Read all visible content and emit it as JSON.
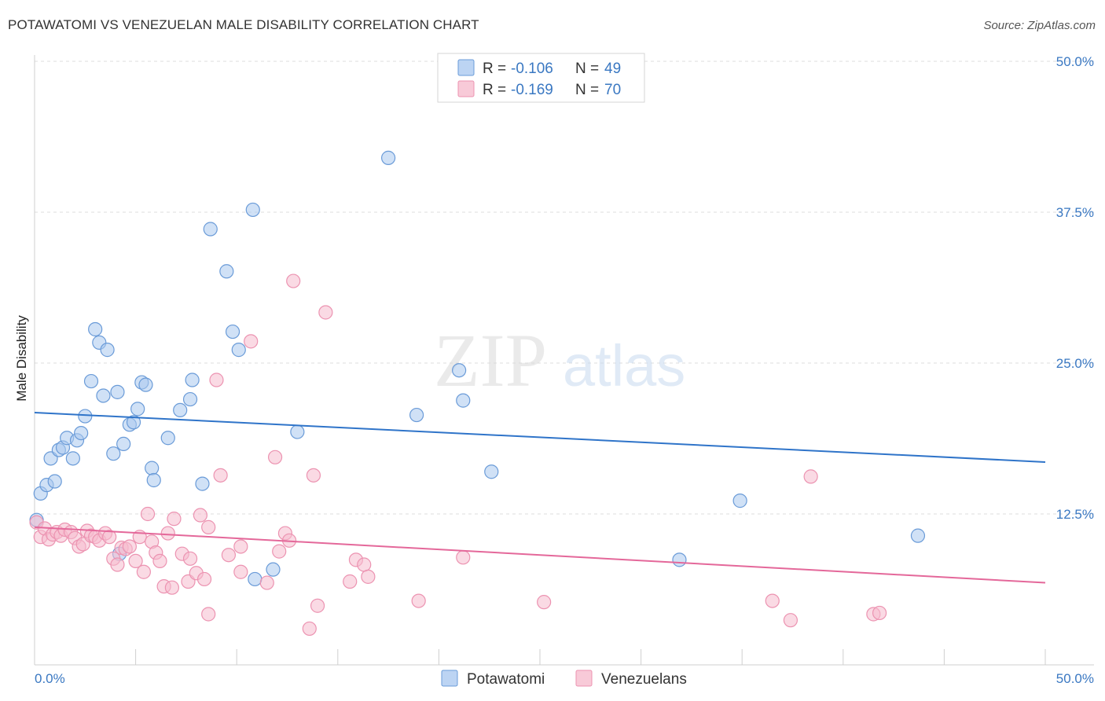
{
  "title": "POTAWATOMI VS VENEZUELAN MALE DISABILITY CORRELATION CHART",
  "source": "Source: ZipAtlas.com",
  "watermark": {
    "zip": "ZIP",
    "atlas": "atlas"
  },
  "colors": {
    "potawatomi_fill": "#a9c8ee",
    "potawatomi_stroke": "#6a9bd8",
    "potawatomi_line": "#2f74c9",
    "venezuelan_fill": "#f6bccd",
    "venezuelan_stroke": "#ec93b1",
    "venezuelan_line": "#e4689a",
    "tick_label": "#3a78c2"
  },
  "legend": {
    "rows": [
      {
        "r_label": "R =",
        "r_value": "-0.106",
        "n_label": "N =",
        "n_value": "49"
      },
      {
        "r_label": "R =",
        "r_value": "-0.169",
        "n_label": "N =",
        "n_value": "70"
      }
    ]
  },
  "chart_data": {
    "type": "scatter",
    "title": "POTAWATOMI VS VENEZUELAN MALE DISABILITY CORRELATION CHART",
    "xlabel": "",
    "ylabel": "Male Disability",
    "xlim": [
      0,
      50
    ],
    "ylim": [
      0,
      50
    ],
    "x_tick_labels": [
      "0.0%",
      "50.0%"
    ],
    "y_tick_labels": [
      "12.5%",
      "25.0%",
      "37.5%",
      "50.0%"
    ],
    "y_ticks": [
      12.5,
      25.0,
      37.5,
      50.0
    ],
    "grid": true,
    "legend_position": "top-center",
    "series": [
      {
        "name": "Potawatomi",
        "r": -0.106,
        "n": 49,
        "trend": {
          "x": [
            0,
            50
          ],
          "y": [
            20.9,
            16.8
          ]
        },
        "points": [
          [
            0.3,
            14.2
          ],
          [
            0.6,
            14.9
          ],
          [
            0.8,
            17.1
          ],
          [
            1.0,
            15.2
          ],
          [
            1.2,
            17.8
          ],
          [
            1.4,
            18.0
          ],
          [
            1.6,
            18.8
          ],
          [
            1.9,
            17.1
          ],
          [
            2.1,
            18.6
          ],
          [
            2.3,
            19.2
          ],
          [
            2.5,
            20.6
          ],
          [
            2.8,
            23.5
          ],
          [
            3.0,
            27.8
          ],
          [
            3.2,
            26.7
          ],
          [
            3.4,
            22.3
          ],
          [
            3.6,
            26.1
          ],
          [
            3.9,
            17.5
          ],
          [
            4.1,
            22.6
          ],
          [
            4.4,
            18.3
          ],
          [
            4.7,
            19.9
          ],
          [
            4.9,
            20.1
          ],
          [
            5.1,
            21.2
          ],
          [
            5.3,
            23.4
          ],
          [
            5.5,
            23.2
          ],
          [
            5.8,
            16.3
          ],
          [
            5.9,
            15.3
          ],
          [
            6.6,
            18.8
          ],
          [
            7.2,
            21.1
          ],
          [
            7.7,
            22.0
          ],
          [
            7.8,
            23.6
          ],
          [
            8.3,
            15.0
          ],
          [
            8.7,
            36.1
          ],
          [
            9.5,
            32.6
          ],
          [
            9.8,
            27.6
          ],
          [
            10.1,
            26.1
          ],
          [
            10.8,
            37.7
          ],
          [
            10.9,
            7.1
          ],
          [
            11.8,
            7.9
          ],
          [
            13.0,
            19.3
          ],
          [
            17.5,
            42.0
          ],
          [
            18.9,
            20.7
          ],
          [
            21.0,
            24.4
          ],
          [
            21.2,
            21.9
          ],
          [
            22.6,
            16.0
          ],
          [
            4.2,
            9.2
          ],
          [
            31.9,
            8.7
          ],
          [
            34.9,
            13.6
          ],
          [
            43.7,
            10.7
          ],
          [
            0.1,
            12.0
          ]
        ]
      },
      {
        "name": "Venezuelans",
        "r": -0.169,
        "n": 70,
        "trend": {
          "x": [
            0,
            50
          ],
          "y": [
            11.4,
            6.8
          ]
        },
        "points": [
          [
            0.1,
            11.8
          ],
          [
            0.3,
            10.6
          ],
          [
            0.5,
            11.3
          ],
          [
            0.7,
            10.4
          ],
          [
            0.9,
            10.8
          ],
          [
            1.1,
            11.0
          ],
          [
            1.3,
            10.7
          ],
          [
            1.5,
            11.2
          ],
          [
            1.8,
            11.0
          ],
          [
            2.0,
            10.5
          ],
          [
            2.2,
            9.8
          ],
          [
            2.4,
            10.0
          ],
          [
            2.6,
            11.1
          ],
          [
            2.8,
            10.7
          ],
          [
            3.0,
            10.6
          ],
          [
            3.2,
            10.3
          ],
          [
            3.5,
            10.9
          ],
          [
            3.7,
            10.6
          ],
          [
            3.9,
            8.8
          ],
          [
            4.1,
            8.3
          ],
          [
            4.3,
            9.7
          ],
          [
            4.5,
            9.6
          ],
          [
            4.7,
            9.8
          ],
          [
            5.0,
            8.6
          ],
          [
            5.2,
            10.6
          ],
          [
            5.4,
            7.7
          ],
          [
            5.6,
            12.5
          ],
          [
            5.8,
            10.2
          ],
          [
            6.0,
            9.3
          ],
          [
            6.2,
            8.6
          ],
          [
            6.4,
            6.5
          ],
          [
            6.6,
            10.9
          ],
          [
            6.8,
            6.4
          ],
          [
            6.9,
            12.1
          ],
          [
            7.3,
            9.2
          ],
          [
            7.6,
            6.9
          ],
          [
            7.7,
            8.8
          ],
          [
            8.0,
            7.6
          ],
          [
            8.2,
            12.4
          ],
          [
            8.4,
            7.1
          ],
          [
            8.6,
            11.4
          ],
          [
            8.6,
            4.2
          ],
          [
            9.0,
            23.6
          ],
          [
            9.2,
            15.7
          ],
          [
            9.6,
            9.1
          ],
          [
            10.2,
            9.8
          ],
          [
            10.2,
            7.7
          ],
          [
            10.7,
            26.8
          ],
          [
            11.5,
            6.8
          ],
          [
            11.9,
            17.2
          ],
          [
            12.1,
            9.4
          ],
          [
            12.4,
            10.9
          ],
          [
            12.6,
            10.3
          ],
          [
            12.8,
            31.8
          ],
          [
            13.8,
            15.7
          ],
          [
            14.0,
            4.9
          ],
          [
            13.6,
            3.0
          ],
          [
            14.4,
            29.2
          ],
          [
            15.6,
            6.9
          ],
          [
            15.9,
            8.7
          ],
          [
            16.3,
            8.3
          ],
          [
            16.5,
            7.3
          ],
          [
            19.0,
            5.3
          ],
          [
            21.2,
            8.9
          ],
          [
            25.2,
            5.2
          ],
          [
            36.5,
            5.3
          ],
          [
            37.4,
            3.7
          ],
          [
            38.4,
            15.6
          ],
          [
            41.5,
            4.2
          ],
          [
            41.8,
            4.3
          ]
        ]
      }
    ]
  }
}
